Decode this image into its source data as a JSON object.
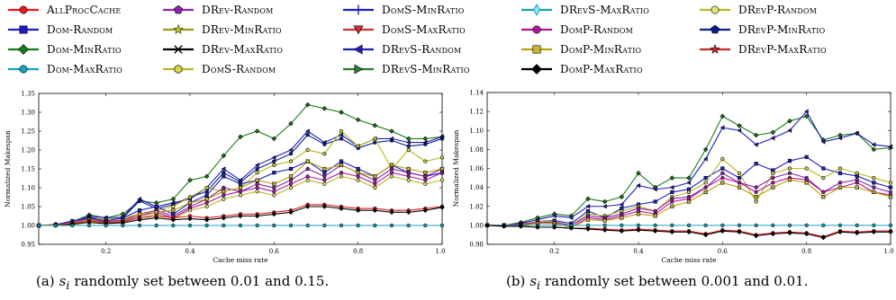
{
  "legend": [
    {
      "name": "AllProcCache",
      "color": "#e31a1c",
      "marker": "circle",
      "mfill": "#e31a1c"
    },
    {
      "name": "Dom-Random",
      "color": "#1f1fbf",
      "marker": "square",
      "mfill": "#1f1fbf"
    },
    {
      "name": "Dom-MinRatio",
      "color": "#1b7a1b",
      "marker": "diamond",
      "mfill": "#1b7a1b"
    },
    {
      "name": "Dom-MaxRatio",
      "color": "#17a2b8",
      "marker": "circle",
      "mfill": "#17a2b8"
    },
    {
      "name": "DRev-Random",
      "color": "#8e24aa",
      "marker": "pentagon",
      "mfill": "#8e24aa"
    },
    {
      "name": "DRev-MinRatio",
      "color": "#9a9a1a",
      "marker": "star",
      "mfill": "#c0c02a"
    },
    {
      "name": "DRev-MaxRatio",
      "color": "#000000",
      "marker": "x",
      "mfill": "#000000"
    },
    {
      "name": "DomS-Random",
      "color": "#b8b820",
      "marker": "hexagon",
      "mfill": "#d6d64a"
    },
    {
      "name": "DomS-MinRatio",
      "color": "#1f1fbf",
      "marker": "plus",
      "mfill": "#1f1fbf"
    },
    {
      "name": "DomS-MaxRatio",
      "color": "#d32f2f",
      "marker": "tri-down",
      "mfill": "#d32f2f"
    },
    {
      "name": "DRevS-Random",
      "color": "#1f1fbf",
      "marker": "tri-left",
      "mfill": "#1f1fbf"
    },
    {
      "name": "DRevS-MinRatio",
      "color": "#2e7d32",
      "marker": "tri-right",
      "mfill": "#2e7d32"
    },
    {
      "name": "DRevS-MaxRatio",
      "color": "#17a2b8",
      "marker": "thin-diamond",
      "mfill": "#9be7ef"
    },
    {
      "name": "DomP-Random",
      "color": "#b0169b",
      "marker": "circle",
      "mfill": "#b0169b"
    },
    {
      "name": "DomP-MinRatio",
      "color": "#b8a000",
      "marker": "square",
      "mfill": "#c9b43a"
    },
    {
      "name": "DomP-MaxRatio",
      "color": "#000000",
      "marker": "diamond",
      "mfill": "#000000"
    },
    {
      "name": "DRevP-Random",
      "color": "#b8b820",
      "marker": "circle",
      "mfill": "#e2e27a"
    },
    {
      "name": "DRevP-MinRatio",
      "color": "#0d1f8c",
      "marker": "pentagon",
      "mfill": "#0d1f8c"
    },
    {
      "name": "DRevP-MaxRatio",
      "color": "#c62828",
      "marker": "star",
      "mfill": "#c62828"
    }
  ],
  "captions": {
    "a": {
      "prefix": "(a)",
      "si": "s",
      "sub": "i",
      "text": "randomly set between 0.01 and 0.15."
    },
    "b": {
      "prefix": "(b)",
      "si": "s",
      "sub": "i",
      "text": "randomly set between 0.001 and 0.01."
    }
  },
  "chart_data": [
    {
      "type": "line",
      "ylabel": "Normalized Makespan",
      "xlabel": "Cache miss rate",
      "xlim": [
        0.04,
        1.0
      ],
      "ylim": [
        0.95,
        1.35
      ],
      "xticks": [
        0.2,
        0.4,
        0.6,
        0.8,
        1.0
      ],
      "xtick_labels": [
        "0.2",
        "0.4",
        "0.6",
        "0.8",
        "1.0"
      ],
      "yticks": [
        0.95,
        1.0,
        1.05,
        1.1,
        1.15,
        1.2,
        1.25,
        1.3,
        1.35
      ],
      "ytick_labels": [
        "0.95",
        "1.00",
        "1.05",
        "1.10",
        "1.15",
        "1.20",
        "1.25",
        "1.30",
        "1.35"
      ],
      "x": [
        0.04,
        0.08,
        0.12,
        0.16,
        0.2,
        0.24,
        0.28,
        0.32,
        0.36,
        0.4,
        0.44,
        0.48,
        0.52,
        0.56,
        0.6,
        0.64,
        0.68,
        0.72,
        0.76,
        0.8,
        0.84,
        0.88,
        0.92,
        0.96,
        1.0
      ],
      "series": [
        {
          "name": "Dom-MinRatio",
          "values": [
            1.0,
            1.003,
            1.01,
            1.028,
            1.02,
            1.03,
            1.065,
            1.06,
            1.07,
            1.12,
            1.13,
            1.185,
            1.235,
            1.25,
            1.23,
            1.27,
            1.32,
            1.31,
            1.3,
            1.28,
            1.265,
            1.25,
            1.23,
            1.23,
            1.235
          ]
        },
        {
          "name": "DRevS-Random",
          "values": [
            1.0,
            1.002,
            1.008,
            1.025,
            1.02,
            1.022,
            1.07,
            1.05,
            1.06,
            1.07,
            1.1,
            1.15,
            1.12,
            1.16,
            1.18,
            1.2,
            1.25,
            1.22,
            1.24,
            1.21,
            1.23,
            1.23,
            1.22,
            1.22,
            1.235
          ]
        },
        {
          "name": "DRevP-MinRatio",
          "values": [
            1.0,
            1.001,
            1.006,
            1.022,
            1.015,
            1.02,
            1.065,
            1.045,
            1.055,
            1.075,
            1.09,
            1.14,
            1.115,
            1.15,
            1.17,
            1.19,
            1.24,
            1.215,
            1.23,
            1.205,
            1.22,
            1.225,
            1.21,
            1.215,
            1.23
          ]
        },
        {
          "name": "DomS-Random",
          "values": [
            1.0,
            1.002,
            1.01,
            1.02,
            1.015,
            1.02,
            1.03,
            1.04,
            1.05,
            1.075,
            1.1,
            1.09,
            1.1,
            1.14,
            1.16,
            1.17,
            1.2,
            1.19,
            1.25,
            1.21,
            1.23,
            1.15,
            1.2,
            1.17,
            1.18
          ]
        },
        {
          "name": "Dom-Random",
          "values": [
            1.0,
            1.002,
            1.012,
            1.02,
            1.012,
            1.02,
            1.04,
            1.05,
            1.03,
            1.06,
            1.08,
            1.13,
            1.11,
            1.12,
            1.14,
            1.15,
            1.17,
            1.14,
            1.17,
            1.15,
            1.13,
            1.16,
            1.14,
            1.13,
            1.14
          ]
        },
        {
          "name": "DRev-Random",
          "values": [
            1.0,
            1.001,
            1.008,
            1.018,
            1.01,
            1.015,
            1.03,
            1.04,
            1.025,
            1.05,
            1.07,
            1.1,
            1.09,
            1.11,
            1.1,
            1.12,
            1.15,
            1.13,
            1.16,
            1.14,
            1.12,
            1.15,
            1.14,
            1.13,
            1.15
          ]
        },
        {
          "name": "DomP-Random",
          "values": [
            1.0,
            1.001,
            1.006,
            1.015,
            1.008,
            1.012,
            1.025,
            1.035,
            1.02,
            1.045,
            1.06,
            1.08,
            1.09,
            1.1,
            1.09,
            1.11,
            1.13,
            1.12,
            1.14,
            1.13,
            1.11,
            1.14,
            1.13,
            1.12,
            1.14
          ]
        },
        {
          "name": "DRevP-Random",
          "values": [
            1.0,
            1.001,
            1.005,
            1.012,
            1.006,
            1.01,
            1.02,
            1.03,
            1.018,
            1.04,
            1.05,
            1.07,
            1.08,
            1.09,
            1.08,
            1.1,
            1.12,
            1.11,
            1.13,
            1.12,
            1.1,
            1.13,
            1.12,
            1.11,
            1.12
          ]
        },
        {
          "name": "DomP-MinRatio",
          "values": [
            1.0,
            1.001,
            1.005,
            1.015,
            1.008,
            1.012,
            1.03,
            1.035,
            1.04,
            1.06,
            1.07,
            1.09,
            1.1,
            1.12,
            1.11,
            1.13,
            1.17,
            1.15,
            1.16,
            1.14,
            1.13,
            1.16,
            1.15,
            1.14,
            1.15
          ]
        },
        {
          "name": "AllProcCache",
          "values": [
            1.0,
            1.001,
            1.004,
            1.012,
            1.008,
            1.01,
            1.02,
            1.025,
            1.02,
            1.025,
            1.02,
            1.025,
            1.03,
            1.03,
            1.035,
            1.04,
            1.055,
            1.055,
            1.05,
            1.045,
            1.045,
            1.04,
            1.04,
            1.045,
            1.05
          ]
        },
        {
          "name": "DomP-MaxRatio",
          "values": [
            1.0,
            1.0,
            1.003,
            1.008,
            1.005,
            1.007,
            1.015,
            1.02,
            1.015,
            1.018,
            1.015,
            1.02,
            1.025,
            1.025,
            1.03,
            1.035,
            1.05,
            1.05,
            1.045,
            1.04,
            1.04,
            1.035,
            1.035,
            1.04,
            1.048
          ]
        },
        {
          "name": "Dom-MaxRatio",
          "values": [
            1.0,
            1.0,
            1.0,
            1.0,
            1.0,
            1.0,
            1.0,
            1.0,
            1.0,
            1.0,
            1.0,
            1.0,
            1.0,
            1.0,
            1.0,
            1.0,
            1.0,
            1.0,
            1.0,
            1.0,
            1.0,
            1.0,
            1.0,
            1.0,
            1.0
          ]
        }
      ]
    },
    {
      "type": "line",
      "ylabel": "Normalized Makespan",
      "xlabel": "Cache miss rate",
      "xlim": [
        0.04,
        1.0
      ],
      "ylim": [
        0.98,
        1.14
      ],
      "xticks": [
        0.2,
        0.4,
        0.6,
        0.8,
        1.0
      ],
      "xtick_labels": [
        "0.2",
        "0.4",
        "0.6",
        "0.8",
        "1.0"
      ],
      "yticks": [
        0.98,
        1.0,
        1.02,
        1.04,
        1.06,
        1.08,
        1.1,
        1.12,
        1.14
      ],
      "ytick_labels": [
        "0.98",
        "1.00",
        "1.02",
        "1.04",
        "1.06",
        "1.08",
        "1.10",
        "1.12",
        "1.14"
      ],
      "x": [
        0.04,
        0.08,
        0.12,
        0.16,
        0.2,
        0.24,
        0.28,
        0.32,
        0.36,
        0.4,
        0.44,
        0.48,
        0.52,
        0.56,
        0.6,
        0.64,
        0.68,
        0.72,
        0.76,
        0.8,
        0.84,
        0.88,
        0.92,
        0.96,
        1.0
      ],
      "series": [
        {
          "name": "Dom-MinRatio",
          "values": [
            1.0,
            1.0,
            1.003,
            1.008,
            1.012,
            1.01,
            1.028,
            1.025,
            1.03,
            1.055,
            1.04,
            1.05,
            1.05,
            1.08,
            1.115,
            1.105,
            1.095,
            1.098,
            1.11,
            1.115,
            1.09,
            1.095,
            1.097,
            1.08,
            1.082
          ]
        },
        {
          "name": "DRevS-Random",
          "values": [
            1.0,
            1.0,
            1.002,
            1.006,
            1.01,
            1.008,
            1.02,
            1.02,
            1.022,
            1.042,
            1.038,
            1.04,
            1.045,
            1.07,
            1.103,
            1.1,
            1.085,
            1.092,
            1.1,
            1.12,
            1.088,
            1.092,
            1.097,
            1.085,
            1.083
          ]
        },
        {
          "name": "Dom-Random",
          "values": [
            1.0,
            1.0,
            1.001,
            1.004,
            1.005,
            1.002,
            1.015,
            1.008,
            1.018,
            1.022,
            1.025,
            1.035,
            1.038,
            1.05,
            1.06,
            1.05,
            1.065,
            1.058,
            1.068,
            1.072,
            1.06,
            1.055,
            1.052,
            1.045,
            1.04
          ]
        },
        {
          "name": "DomS-Random",
          "values": [
            1.0,
            1.0,
            1.001,
            1.004,
            1.004,
            1.0,
            1.012,
            1.01,
            1.015,
            1.02,
            1.015,
            1.03,
            1.035,
            1.045,
            1.07,
            1.055,
            1.025,
            1.055,
            1.06,
            1.06,
            1.05,
            1.06,
            1.055,
            1.05,
            1.045
          ]
        },
        {
          "name": "DRev-Random",
          "values": [
            1.0,
            1.0,
            1.001,
            1.003,
            1.003,
            1.0,
            1.01,
            1.008,
            1.012,
            1.018,
            1.015,
            1.028,
            1.03,
            1.04,
            1.055,
            1.045,
            1.04,
            1.05,
            1.055,
            1.05,
            1.035,
            1.045,
            1.048,
            1.04,
            1.035
          ]
        },
        {
          "name": "DomP-Random",
          "values": [
            1.0,
            1.0,
            1.001,
            1.003,
            1.002,
            0.998,
            1.008,
            1.006,
            1.01,
            1.015,
            1.012,
            1.025,
            1.028,
            1.04,
            1.05,
            1.045,
            1.035,
            1.045,
            1.05,
            1.048,
            1.035,
            1.04,
            1.045,
            1.035,
            1.032
          ]
        },
        {
          "name": "DomP-MinRatio",
          "values": [
            1.0,
            1.0,
            1.0,
            1.002,
            1.002,
            0.998,
            1.006,
            1.005,
            1.008,
            1.012,
            1.01,
            1.02,
            1.025,
            1.035,
            1.045,
            1.04,
            1.03,
            1.04,
            1.048,
            1.045,
            1.03,
            1.04,
            1.04,
            1.035,
            1.03
          ]
        },
        {
          "name": "Dom-MaxRatio",
          "values": [
            1.0,
            1.0,
            1.0,
            1.0,
            1.0,
            1.0,
            1.0,
            1.0,
            1.0,
            1.0,
            1.0,
            1.0,
            1.0,
            1.0,
            1.0,
            1.0,
            1.0,
            1.0,
            1.0,
            1.0,
            1.0,
            1.0,
            1.0,
            1.0,
            1.0
          ]
        },
        {
          "name": "AllProcCache",
          "values": [
            1.0,
            0.999,
            0.999,
            0.998,
            0.998,
            0.997,
            0.997,
            0.996,
            0.995,
            0.996,
            0.995,
            0.994,
            0.994,
            0.991,
            0.995,
            0.994,
            0.99,
            0.992,
            0.993,
            0.992,
            0.988,
            0.994,
            0.993,
            0.994,
            0.994
          ]
        },
        {
          "name": "DomP-MaxRatio",
          "values": [
            1.0,
            0.999,
            0.999,
            0.998,
            0.998,
            0.997,
            0.996,
            0.995,
            0.994,
            0.995,
            0.994,
            0.993,
            0.993,
            0.99,
            0.994,
            0.993,
            0.989,
            0.991,
            0.992,
            0.991,
            0.987,
            0.993,
            0.992,
            0.993,
            0.993
          ]
        }
      ]
    }
  ]
}
